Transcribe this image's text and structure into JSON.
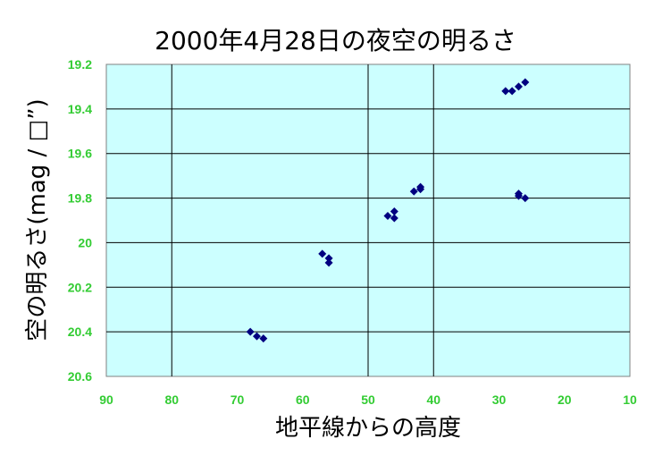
{
  "chart_data": {
    "type": "scatter",
    "title": "2000年4月28日の夜空の明るさ",
    "xlabel": "地平線からの高度",
    "ylabel": "空の明るさ(mag / □”)",
    "xlim": [
      90,
      10
    ],
    "ylim": [
      19.2,
      20.6
    ],
    "x_reversed": true,
    "y_reversed": true,
    "x_ticks": [
      "90",
      "80",
      "70",
      "60",
      "50",
      "40",
      "30",
      "20",
      "10"
    ],
    "y_ticks": [
      "19.2",
      "19.4",
      "19.6",
      "19.8",
      "20",
      "20.2",
      "20.4",
      "20.6"
    ],
    "x_gridlines": [
      80,
      50,
      40
    ],
    "y_gridlines": [
      19.4,
      19.6,
      19.8,
      20.0,
      20.2,
      20.4
    ],
    "series": [
      {
        "color": "#000080",
        "marker": "diamond",
        "points": [
          {
            "x": 68,
            "y": 20.4
          },
          {
            "x": 67,
            "y": 20.42
          },
          {
            "x": 66,
            "y": 20.43
          },
          {
            "x": 57,
            "y": 20.05
          },
          {
            "x": 56,
            "y": 20.07
          },
          {
            "x": 56,
            "y": 20.09
          },
          {
            "x": 47,
            "y": 19.88
          },
          {
            "x": 46,
            "y": 19.89
          },
          {
            "x": 46,
            "y": 19.86
          },
          {
            "x": 43,
            "y": 19.77
          },
          {
            "x": 42,
            "y": 19.76
          },
          {
            "x": 42,
            "y": 19.75
          },
          {
            "x": 29,
            "y": 19.32
          },
          {
            "x": 28,
            "y": 19.32
          },
          {
            "x": 27,
            "y": 19.3
          },
          {
            "x": 26,
            "y": 19.28
          },
          {
            "x": 27,
            "y": 19.78
          },
          {
            "x": 27,
            "y": 19.79
          },
          {
            "x": 26,
            "y": 19.8
          }
        ]
      }
    ],
    "colors": {
      "plot_background": "#ccffff",
      "tick_labels": "#33cc33",
      "gridlines": "#000000"
    },
    "grid": true,
    "legend": "none"
  }
}
